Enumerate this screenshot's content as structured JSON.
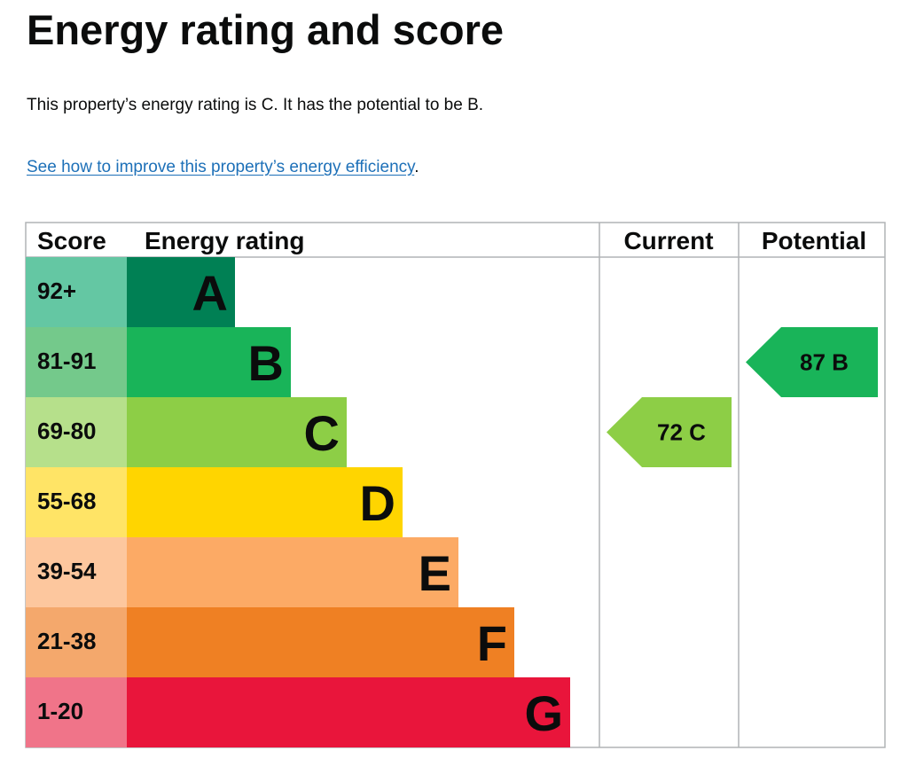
{
  "page": {
    "title": "Energy rating and score",
    "summary": "This property’s energy rating is C. It has the potential to be B.",
    "link_text": "See how to improve this property’s energy efficiency",
    "link_suffix": "."
  },
  "chart_data": {
    "type": "bar",
    "headers": {
      "score": "Score",
      "rating": "Energy rating",
      "current": "Current",
      "potential": "Potential"
    },
    "bands": [
      {
        "letter": "A",
        "range": "92+",
        "min": 92,
        "max": 100,
        "color": "#008054",
        "light": "#64c7a3"
      },
      {
        "letter": "B",
        "range": "81-91",
        "min": 81,
        "max": 91,
        "color": "#19b459",
        "light": "#74c98b"
      },
      {
        "letter": "C",
        "range": "69-80",
        "min": 69,
        "max": 80,
        "color": "#8dce46",
        "light": "#b6e08b"
      },
      {
        "letter": "D",
        "range": "55-68",
        "min": 55,
        "max": 68,
        "color": "#ffd500",
        "light": "#ffe466"
      },
      {
        "letter": "E",
        "range": "39-54",
        "min": 39,
        "max": 54,
        "color": "#fcaa65",
        "light": "#fdc79e"
      },
      {
        "letter": "F",
        "range": "21-38",
        "min": 21,
        "max": 38,
        "color": "#ef8023",
        "light": "#f4a86c"
      },
      {
        "letter": "G",
        "range": "1-20",
        "min": 1,
        "max": 20,
        "color": "#e9153b",
        "light": "#f07489"
      }
    ],
    "current": {
      "score": 72,
      "band": "C",
      "label": "72  C",
      "color": "#8dce46"
    },
    "potential": {
      "score": 87,
      "band": "B",
      "label": "87  B",
      "color": "#19b459"
    }
  }
}
